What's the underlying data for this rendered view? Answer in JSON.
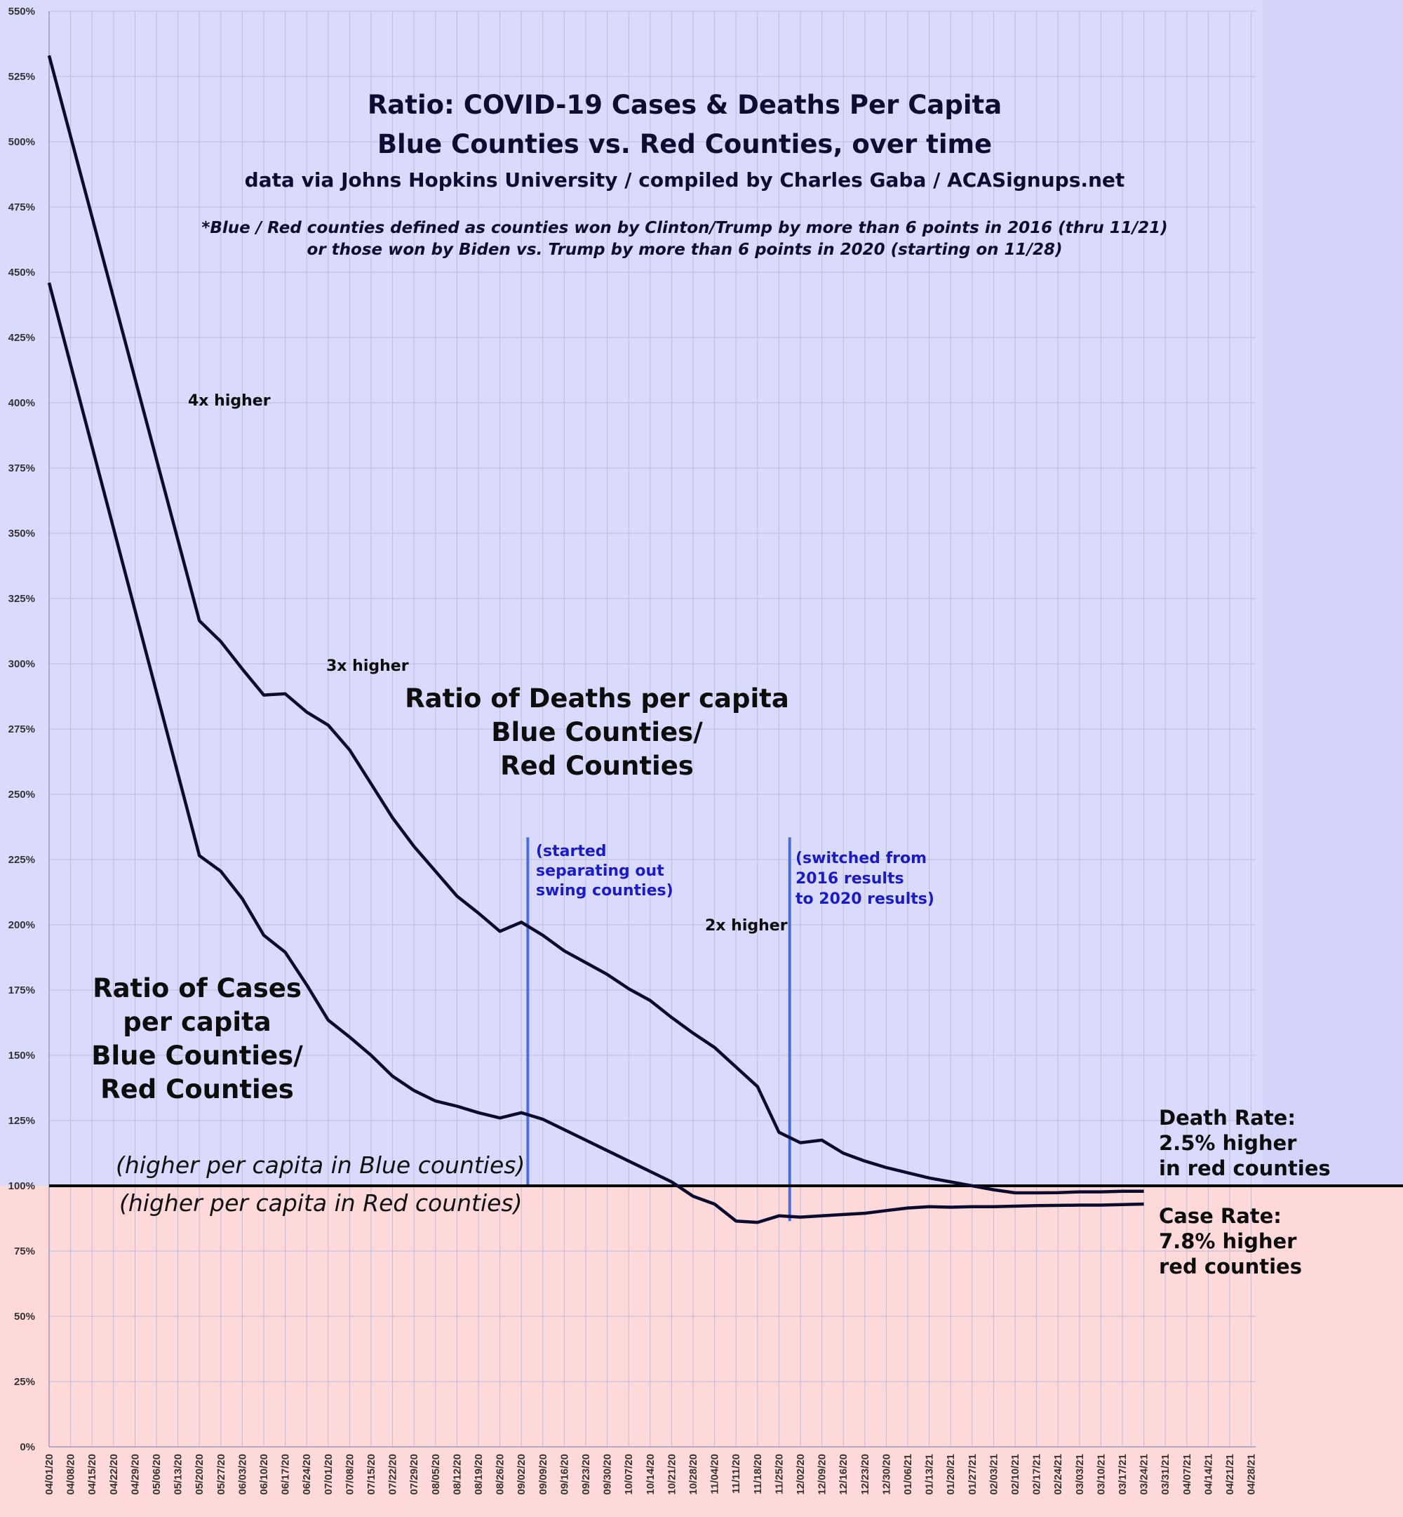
{
  "chart_data": {
    "type": "line",
    "title_lines": [
      "Ratio: COVID-19 Cases & Deaths Per Capita",
      "Blue Counties vs. Red Counties, over time",
      "data via Johns Hopkins University / compiled by Charles Gaba / ACASignups.net"
    ],
    "note_lines": [
      "*Blue / Red counties defined as counties won by Clinton/Trump by more than 6 points in 2016 (thru 11/21)",
      "or those won by Biden vs. Trump by more than 6 points in 2020 (starting on 11/28)"
    ],
    "x_categories": [
      "04/01/20",
      "04/08/20",
      "04/15/20",
      "04/22/20",
      "04/29/20",
      "05/06/20",
      "05/13/20",
      "05/20/20",
      "05/27/20",
      "06/03/20",
      "06/10/20",
      "06/17/20",
      "06/24/20",
      "07/01/20",
      "07/08/20",
      "07/15/20",
      "07/22/20",
      "07/29/20",
      "08/05/20",
      "08/12/20",
      "08/19/20",
      "08/26/20",
      "09/02/20",
      "09/09/20",
      "09/16/20",
      "09/23/20",
      "09/30/20",
      "10/07/20",
      "10/14/20",
      "10/21/20",
      "10/28/20",
      "11/04/20",
      "11/11/20",
      "11/18/20",
      "11/25/20",
      "12/02/20",
      "12/09/20",
      "12/16/20",
      "12/23/20",
      "12/30/20",
      "01/06/21",
      "01/13/21",
      "01/20/21",
      "01/27/21",
      "02/03/21",
      "02/10/21",
      "02/17/21",
      "02/24/21",
      "03/03/21",
      "03/10/21",
      "03/17/21",
      "03/24/21",
      "03/31/21",
      "04/07/21",
      "04/14/21",
      "04/21/21",
      "04/28/21"
    ],
    "y_ticks": [
      "0%",
      "25%",
      "50%",
      "75%",
      "100%",
      "125%",
      "150%",
      "175%",
      "200%",
      "225%",
      "250%",
      "275%",
      "300%",
      "325%",
      "350%",
      "375%",
      "400%",
      "425%",
      "450%",
      "475%",
      "500%",
      "525%",
      "550%"
    ],
    "ylim": [
      0,
      550
    ],
    "baseline": 100,
    "series": [
      {
        "key": "deaths",
        "color": "#0b0b2e",
        "points": [
          [
            0,
            533
          ],
          [
            7,
            316.5
          ],
          [
            8,
            308.5
          ],
          [
            9,
            298
          ],
          [
            10,
            288
          ],
          [
            11,
            288.5
          ],
          [
            12,
            281.5
          ],
          [
            13,
            276.5
          ],
          [
            14,
            267
          ],
          [
            15,
            254
          ],
          [
            16,
            241
          ],
          [
            17,
            230
          ],
          [
            18,
            220.5
          ],
          [
            19,
            211
          ],
          [
            20,
            204.5
          ],
          [
            21,
            197.5
          ],
          [
            22,
            201
          ],
          [
            23,
            196
          ],
          [
            24,
            190
          ],
          [
            25,
            185.5
          ],
          [
            26,
            181
          ],
          [
            27,
            175.5
          ],
          [
            28,
            171
          ],
          [
            29,
            164.5
          ],
          [
            30,
            158.5
          ],
          [
            31,
            153
          ],
          [
            32,
            145.5
          ],
          [
            33,
            138
          ],
          [
            34,
            120.5
          ],
          [
            35,
            116.5
          ],
          [
            36,
            117.5
          ],
          [
            37,
            112.5
          ],
          [
            38,
            109.5
          ],
          [
            39,
            107
          ],
          [
            40,
            105
          ],
          [
            41,
            103
          ],
          [
            42,
            101.5
          ],
          [
            43,
            100
          ],
          [
            44,
            98.5
          ],
          [
            45,
            97.3
          ],
          [
            46,
            97.3
          ],
          [
            47,
            97.4
          ],
          [
            48,
            97.7
          ],
          [
            49,
            97.7
          ],
          [
            50,
            97.9
          ],
          [
            51,
            97.9
          ]
        ]
      },
      {
        "key": "cases",
        "color": "#0b0b2e",
        "points": [
          [
            0,
            446
          ],
          [
            7,
            226.5
          ],
          [
            8,
            220.5
          ],
          [
            9,
            210
          ],
          [
            10,
            196
          ],
          [
            11,
            189.5
          ],
          [
            12,
            177
          ],
          [
            13,
            163.5
          ],
          [
            14,
            157
          ],
          [
            15,
            150
          ],
          [
            16,
            142
          ],
          [
            17,
            136.5
          ],
          [
            18,
            132.5
          ],
          [
            19,
            130.5
          ],
          [
            20,
            128
          ],
          [
            21,
            126
          ],
          [
            22,
            128
          ],
          [
            23,
            125.5
          ],
          [
            24,
            121.5
          ],
          [
            25,
            117.5
          ],
          [
            26,
            113.5
          ],
          [
            27,
            109.5
          ],
          [
            28,
            105.5
          ],
          [
            29,
            101.5
          ],
          [
            30,
            96
          ],
          [
            31,
            93
          ],
          [
            32,
            86.5
          ],
          [
            33,
            86
          ],
          [
            34,
            88.5
          ],
          [
            35,
            88
          ],
          [
            36,
            88.5
          ],
          [
            37,
            89
          ],
          [
            38,
            89.5
          ],
          [
            39,
            90.5
          ],
          [
            40,
            91.5
          ],
          [
            41,
            92
          ],
          [
            42,
            91.8
          ],
          [
            43,
            92
          ],
          [
            44,
            92
          ],
          [
            45,
            92.2
          ],
          [
            46,
            92.4
          ],
          [
            47,
            92.5
          ],
          [
            48,
            92.6
          ],
          [
            49,
            92.6
          ],
          [
            50,
            92.8
          ],
          [
            51,
            93
          ]
        ]
      }
    ],
    "markers": [
      {
        "x_index": 22.3,
        "label_lines": [
          "(started",
          "separating out",
          "swing counties)"
        ]
      },
      {
        "x_index": 34.5,
        "label_lines": [
          "(switched from",
          "2016 results",
          "to 2020 results)"
        ]
      }
    ],
    "annotations": {
      "x4": "4x higher",
      "x3": "3x higher",
      "x2": "2x higher",
      "deaths_label": [
        "Ratio of Deaths per capita",
        "Blue Counties/",
        "Red Counties"
      ],
      "cases_label": [
        "Ratio of Cases",
        "per capita",
        "Blue Counties/",
        "Red Counties"
      ],
      "above_line": "(higher per capita in Blue counties)",
      "below_line": "(higher per capita in Red counties)",
      "death_rate": [
        "Death Rate:",
        "2.5% higher",
        "in red counties"
      ],
      "case_rate": [
        "Case Rate:",
        "7.8% higher",
        "red counties"
      ]
    },
    "colors": {
      "blue_zone": "#dadafc",
      "red_zone": "#fdd9d9",
      "marker": "#4a6de0",
      "line": "#0b0b2e"
    },
    "grid": true
  }
}
